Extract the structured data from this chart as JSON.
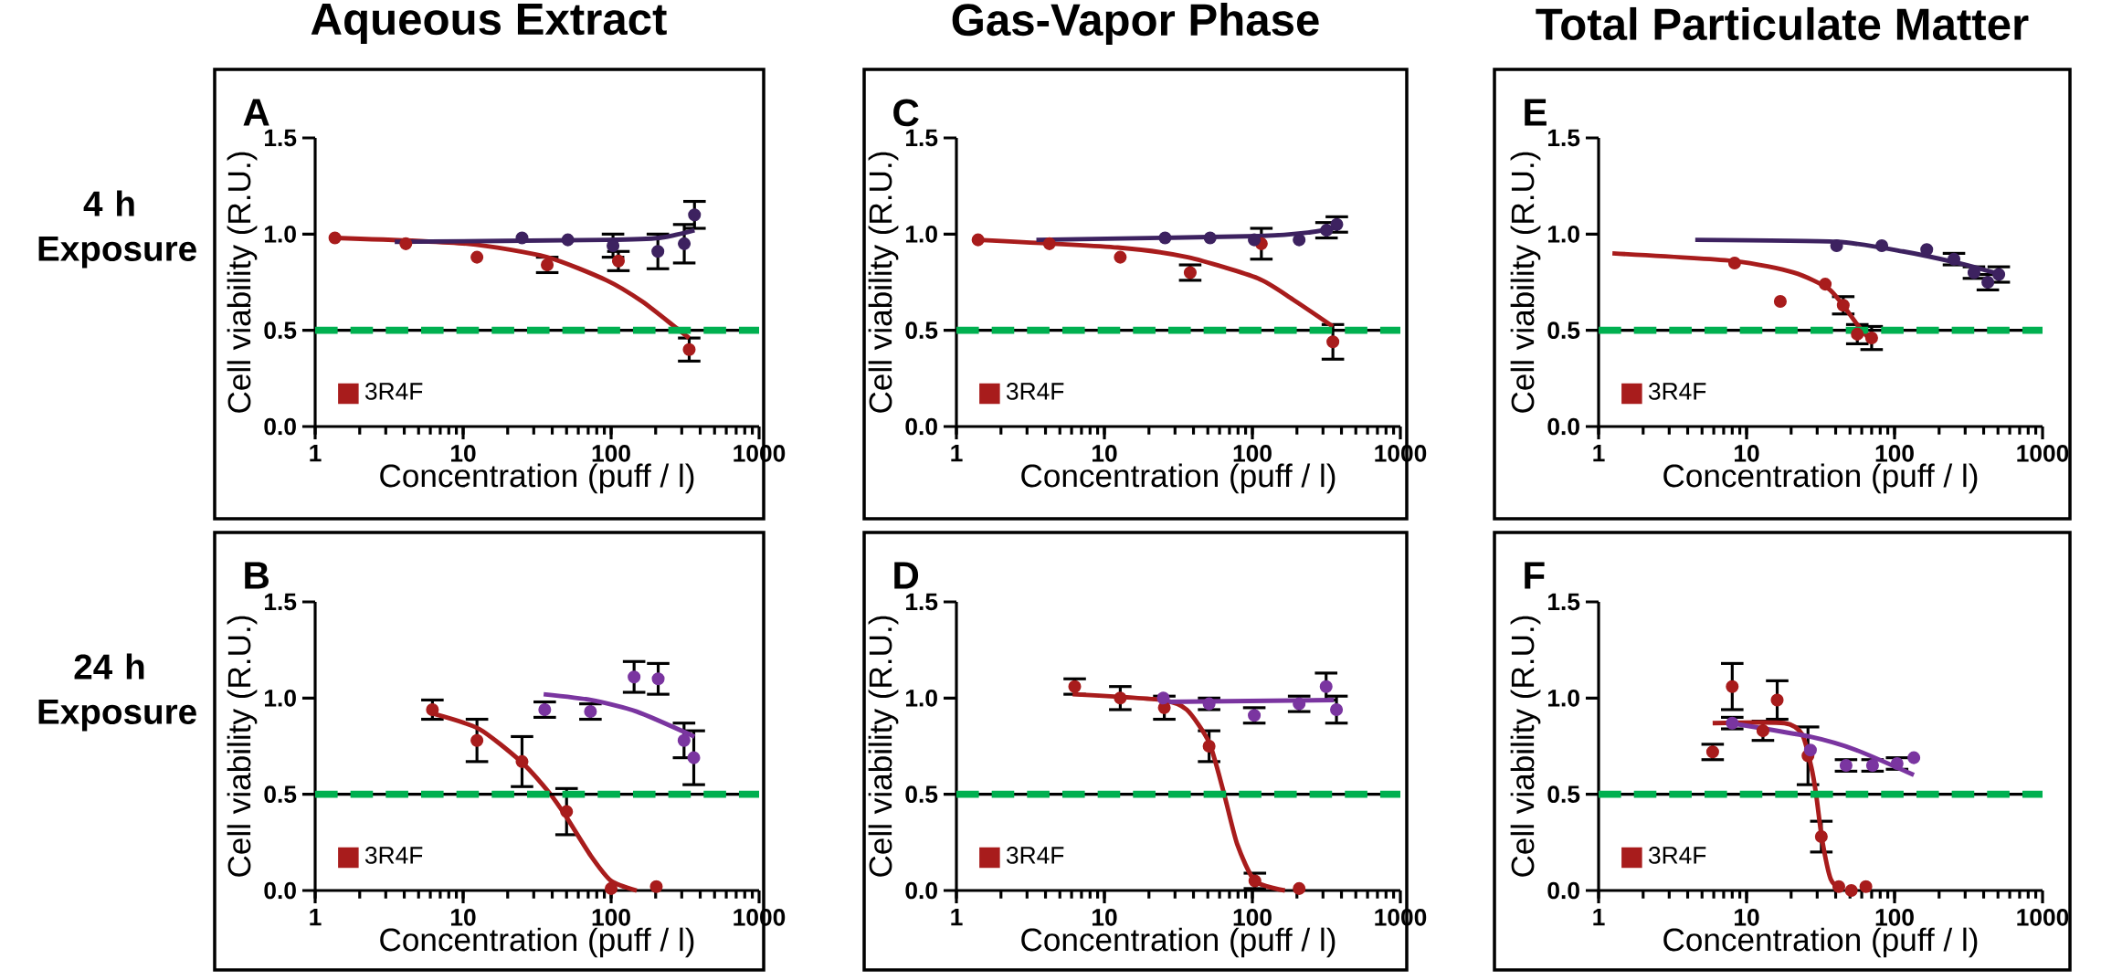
{
  "chart_data": [
    {
      "type": "scatter",
      "title": "Aqueous Extract",
      "subtitle": "A",
      "annotations": [
        "4 h Exposure"
      ],
      "xlabel": "Concentration (puff / l)",
      "ylabel": "Cell viability (R.U.)",
      "log": "x",
      "xlim": [
        1,
        1000
      ],
      "xticks": [
        1,
        10,
        100,
        1000
      ],
      "ylim": [
        0,
        1.5
      ],
      "yticks": [
        {
          "value": 0,
          "label": "0.0"
        },
        {
          "value": 0.5,
          "label": "0.5"
        },
        {
          "value": 1,
          "label": "1.0"
        },
        {
          "value": 1.5,
          "label": "1.5"
        }
      ],
      "marker": "circle",
      "legend": "bottom left",
      "ref_lines": [
        {
          "axis": "y",
          "value": 0.5,
          "color": "#000000",
          "line_style": "solid"
        },
        {
          "axis": "y",
          "value": 0.5,
          "color": "#00b050",
          "line_style": "dashed"
        }
      ],
      "series": [
        {
          "name": "3R4F",
          "color": "#a81c1c",
          "x": [
            1.36,
            4.1,
            12.4,
            37,
            112,
            337
          ],
          "values": [
            0.98,
            0.95,
            0.88,
            0.84,
            0.86,
            0.4
          ],
          "errors": [
            null,
            null,
            null,
            0.04,
            0.05,
            0.06
          ]
        },
        {
          "color": "#3d2260",
          "x": [
            25,
            51,
            103,
            207,
            312,
            366
          ],
          "values": [
            0.98,
            0.97,
            0.94,
            0.91,
            0.95,
            1.1
          ],
          "errors": [
            null,
            null,
            0.06,
            0.09,
            0.1,
            0.07
          ]
        },
        {
          "type": "line",
          "marker": "none",
          "color": "#a81c1c",
          "x": [
            1.36,
            10.6,
            37,
            93,
            162,
            278,
            337
          ],
          "values": [
            0.98,
            0.95,
            0.88,
            0.76,
            0.65,
            0.51,
            0.46
          ]
        },
        {
          "type": "line",
          "marker": "none",
          "color": "#3d2260",
          "x": [
            3.45,
            93,
            212,
            366
          ],
          "values": [
            0.96,
            0.97,
            0.98,
            1.02
          ]
        }
      ]
    },
    {
      "type": "scatter",
      "title": "Gas-Vapor Phase",
      "subtitle": "C",
      "xlabel": "Concentration (puff / l)",
      "ylabel": "Cell viability (R.U.)",
      "log": "x",
      "xlim": [
        1,
        1000
      ],
      "xticks": [
        1,
        10,
        100,
        1000
      ],
      "ylim": [
        0,
        1.5
      ],
      "yticks": [
        {
          "value": 0,
          "label": "0.0"
        },
        {
          "value": 0.5,
          "label": "0.5"
        },
        {
          "value": 1,
          "label": "1.0"
        },
        {
          "value": 1.5,
          "label": "1.5"
        }
      ],
      "marker": "circle",
      "legend": "bottom left",
      "ref_lines": [
        {
          "axis": "y",
          "value": 0.5,
          "color": "#000000",
          "line_style": "solid"
        },
        {
          "axis": "y",
          "value": 0.5,
          "color": "#00b050",
          "line_style": "dashed"
        }
      ],
      "series": [
        {
          "name": "3R4F",
          "color": "#a81c1c",
          "x": [
            1.4,
            4.25,
            12.8,
            38,
            115,
            350
          ],
          "values": [
            0.97,
            0.95,
            0.88,
            0.8,
            0.95,
            0.44
          ],
          "errors": [
            null,
            null,
            null,
            0.04,
            0.08,
            0.09
          ]
        },
        {
          "color": "#3d2260",
          "x": [
            25.7,
            51.8,
            103,
            207,
            317,
            372
          ],
          "values": [
            0.98,
            0.98,
            0.97,
            0.97,
            1.02,
            1.05
          ],
          "errors": [
            null,
            null,
            null,
            null,
            0.04,
            0.04
          ]
        },
        {
          "type": "line",
          "marker": "none",
          "color": "#a81c1c",
          "x": [
            1.4,
            12.3,
            36.6,
            109,
            188,
            350
          ],
          "values": [
            0.97,
            0.93,
            0.88,
            0.77,
            0.66,
            0.52
          ]
        },
        {
          "type": "line",
          "marker": "none",
          "color": "#3d2260",
          "x": [
            3.47,
            109,
            248,
            392
          ],
          "values": [
            0.97,
            0.99,
            1.01,
            1.04
          ]
        }
      ]
    },
    {
      "type": "scatter",
      "title": "Total Particulate Matter",
      "subtitle": "E",
      "xlabel": "Concentration (puff / l)",
      "ylabel": "Cell viability (R.U.)",
      "log": "x",
      "xlim": [
        1,
        1000
      ],
      "xticks": [
        1,
        10,
        100,
        1000
      ],
      "ylim": [
        0,
        1.5
      ],
      "yticks": [
        {
          "value": 0,
          "label": "0.0"
        },
        {
          "value": 0.5,
          "label": "0.5"
        },
        {
          "value": 1,
          "label": "1.0"
        },
        {
          "value": 1.5,
          "label": "1.5"
        }
      ],
      "marker": "circle",
      "legend": "bottom left",
      "ref_lines": [
        {
          "axis": "y",
          "value": 0.5,
          "color": "#000000",
          "line_style": "solid"
        },
        {
          "axis": "y",
          "value": 0.5,
          "color": "#00b050",
          "line_style": "dashed"
        }
      ],
      "series": [
        {
          "name": "3R4F",
          "color": "#a81c1c",
          "x": [
            8.3,
            16.9,
            34,
            45,
            56,
            70
          ],
          "values": [
            0.85,
            0.65,
            0.74,
            0.63,
            0.48,
            0.46
          ],
          "errors": [
            null,
            null,
            null,
            0.045,
            0.05,
            0.06
          ]
        },
        {
          "color": "#3d2260",
          "x": [
            40.6,
            82,
            165,
            252,
            344,
            427,
            506
          ],
          "values": [
            0.94,
            0.94,
            0.92,
            0.87,
            0.8,
            0.75,
            0.79
          ],
          "errors": [
            null,
            null,
            null,
            0.03,
            0.03,
            0.04,
            0.04
          ]
        },
        {
          "type": "line",
          "marker": "none",
          "color": "#a81c1c",
          "x": [
            1.24,
            8.3,
            20.8,
            36.6,
            56,
            70
          ],
          "values": [
            0.9,
            0.86,
            0.8,
            0.71,
            0.53,
            0.44
          ]
        },
        {
          "type": "line",
          "marker": "none",
          "color": "#3d2260",
          "x": [
            4.5,
            40.6,
            114,
            267,
            525
          ],
          "values": [
            0.97,
            0.96,
            0.91,
            0.85,
            0.79
          ]
        }
      ]
    },
    {
      "type": "scatter",
      "subtitle": "B",
      "annotations": [
        "24 h Exposure"
      ],
      "xlabel": "Concentration (puff / l)",
      "ylabel": "Cell viability (R.U.)",
      "log": "x",
      "xlim": [
        1,
        1000
      ],
      "xticks": [
        1,
        10,
        100,
        1000
      ],
      "ylim": [
        0,
        1.5
      ],
      "yticks": [
        {
          "value": 0,
          "label": "0.0"
        },
        {
          "value": 0.5,
          "label": "0.5"
        },
        {
          "value": 1,
          "label": "1.0"
        },
        {
          "value": 1.5,
          "label": "1.5"
        }
      ],
      "marker": "circle",
      "legend": "bottom left",
      "ref_lines": [
        {
          "axis": "y",
          "value": 0.5,
          "color": "#000000",
          "line_style": "solid"
        },
        {
          "axis": "y",
          "value": 0.5,
          "color": "#00b050",
          "line_style": "dashed"
        }
      ],
      "series": [
        {
          "name": "3R4F",
          "color": "#a81c1c",
          "x": [
            6.2,
            12.4,
            25,
            50,
            100,
            202
          ],
          "values": [
            0.94,
            0.78,
            0.67,
            0.41,
            0.01,
            0.02
          ],
          "errors": [
            0.05,
            0.11,
            0.13,
            0.12,
            null,
            null
          ]
        },
        {
          "color": "#7a35a0",
          "x": [
            35.6,
            72.5,
            143,
            208,
            311,
            362
          ],
          "values": [
            0.94,
            0.93,
            1.11,
            1.1,
            0.78,
            0.69
          ],
          "errors": [
            0.04,
            0.04,
            0.08,
            0.08,
            0.09,
            0.14
          ]
        },
        {
          "type": "line",
          "marker": "none",
          "color": "#a81c1c",
          "x": [
            6.2,
            12.8,
            24.6,
            38,
            50,
            73,
            100,
            149
          ],
          "values": [
            0.92,
            0.84,
            0.67,
            0.51,
            0.38,
            0.18,
            0.05,
            0.0
          ]
        },
        {
          "type": "line",
          "marker": "none",
          "color": "#7a35a0",
          "x": [
            35,
            73,
            149,
            366
          ],
          "values": [
            1.02,
            0.99,
            0.93,
            0.8
          ]
        }
      ]
    },
    {
      "type": "scatter",
      "subtitle": "D",
      "xlabel": "Concentration (puff / l)",
      "ylabel": "Cell viability (R.U.)",
      "log": "x",
      "xlim": [
        1,
        1000
      ],
      "xticks": [
        1,
        10,
        100,
        1000
      ],
      "ylim": [
        0,
        1.5
      ],
      "yticks": [
        {
          "value": 0,
          "label": "0.0"
        },
        {
          "value": 0.5,
          "label": "0.5"
        },
        {
          "value": 1,
          "label": "1.0"
        },
        {
          "value": 1.5,
          "label": "1.5"
        }
      ],
      "marker": "circle",
      "legend": "bottom left",
      "ref_lines": [
        {
          "axis": "y",
          "value": 0.5,
          "color": "#000000",
          "line_style": "solid"
        },
        {
          "axis": "y",
          "value": 0.5,
          "color": "#00b050",
          "line_style": "dashed"
        }
      ],
      "series": [
        {
          "name": "3R4F",
          "color": "#a81c1c",
          "x": [
            6.3,
            12.8,
            25.4,
            51,
            104,
            207
          ],
          "values": [
            1.06,
            1.0,
            0.95,
            0.75,
            0.05,
            0.01
          ],
          "errors": [
            0.04,
            0.06,
            0.06,
            0.08,
            0.04,
            null
          ]
        },
        {
          "color": "#7a35a0",
          "x": [
            25,
            51,
            103,
            207,
            315,
            370
          ],
          "values": [
            1.0,
            0.97,
            0.91,
            0.97,
            1.06,
            0.94
          ],
          "errors": [
            null,
            0.03,
            0.04,
            0.04,
            0.07,
            0.07
          ]
        },
        {
          "type": "line",
          "marker": "none",
          "color": "#a81c1c",
          "x": [
            6.1,
            24.5,
            36,
            51,
            64,
            79,
            104,
            166
          ],
          "values": [
            1.02,
            0.99,
            0.94,
            0.77,
            0.51,
            0.24,
            0.05,
            0.0
          ]
        },
        {
          "type": "line",
          "marker": "none",
          "color": "#7a35a0",
          "x": [
            25,
            356
          ],
          "values": [
            0.98,
            0.99
          ]
        }
      ]
    },
    {
      "type": "scatter",
      "subtitle": "F",
      "xlabel": "Concentration (puff / l)",
      "ylabel": "Cell viability (R.U.)",
      "log": "x",
      "xlim": [
        1,
        1000
      ],
      "xticks": [
        1,
        10,
        100,
        1000
      ],
      "ylim": [
        0,
        1.5
      ],
      "yticks": [
        {
          "value": 0,
          "label": "0.0"
        },
        {
          "value": 0.5,
          "label": "0.5"
        },
        {
          "value": 1,
          "label": "1.0"
        },
        {
          "value": 1.5,
          "label": "1.5"
        }
      ],
      "marker": "circle",
      "legend": "bottom left",
      "ref_lines": [
        {
          "axis": "y",
          "value": 0.5,
          "color": "#000000",
          "line_style": "solid"
        },
        {
          "axis": "y",
          "value": 0.5,
          "color": "#00b050",
          "line_style": "dashed"
        }
      ],
      "series": [
        {
          "name": "3R4F",
          "color": "#a81c1c",
          "x": [
            5.9,
            8.0,
            12.9,
            16.1,
            26,
            32,
            42,
            51,
            64
          ],
          "values": [
            0.72,
            1.06,
            0.83,
            0.99,
            0.7,
            0.28,
            0.02,
            0.0,
            0.02
          ],
          "errors": [
            0.04,
            0.12,
            0.05,
            0.1,
            0.15,
            0.08,
            null,
            null,
            null
          ]
        },
        {
          "color": "#7a35a0",
          "x": [
            8.0,
            27,
            47,
            71,
            104,
            135
          ],
          "values": [
            0.87,
            0.73,
            0.65,
            0.65,
            0.66,
            0.69
          ],
          "errors": [
            0.03,
            null,
            0.03,
            0.03,
            0.03,
            null
          ]
        },
        {
          "type": "line",
          "marker": "none",
          "color": "#a81c1c",
          "x": [
            5.9,
            18,
            23.8,
            27.4,
            29.5,
            32.3,
            37,
            44
          ],
          "values": [
            0.87,
            0.87,
            0.81,
            0.64,
            0.5,
            0.27,
            0.06,
            0.0
          ]
        },
        {
          "type": "line",
          "marker": "none",
          "color": "#7a35a0",
          "x": [
            7.8,
            26.6,
            55,
            135
          ],
          "values": [
            0.87,
            0.8,
            0.73,
            0.6
          ]
        }
      ]
    }
  ]
}
